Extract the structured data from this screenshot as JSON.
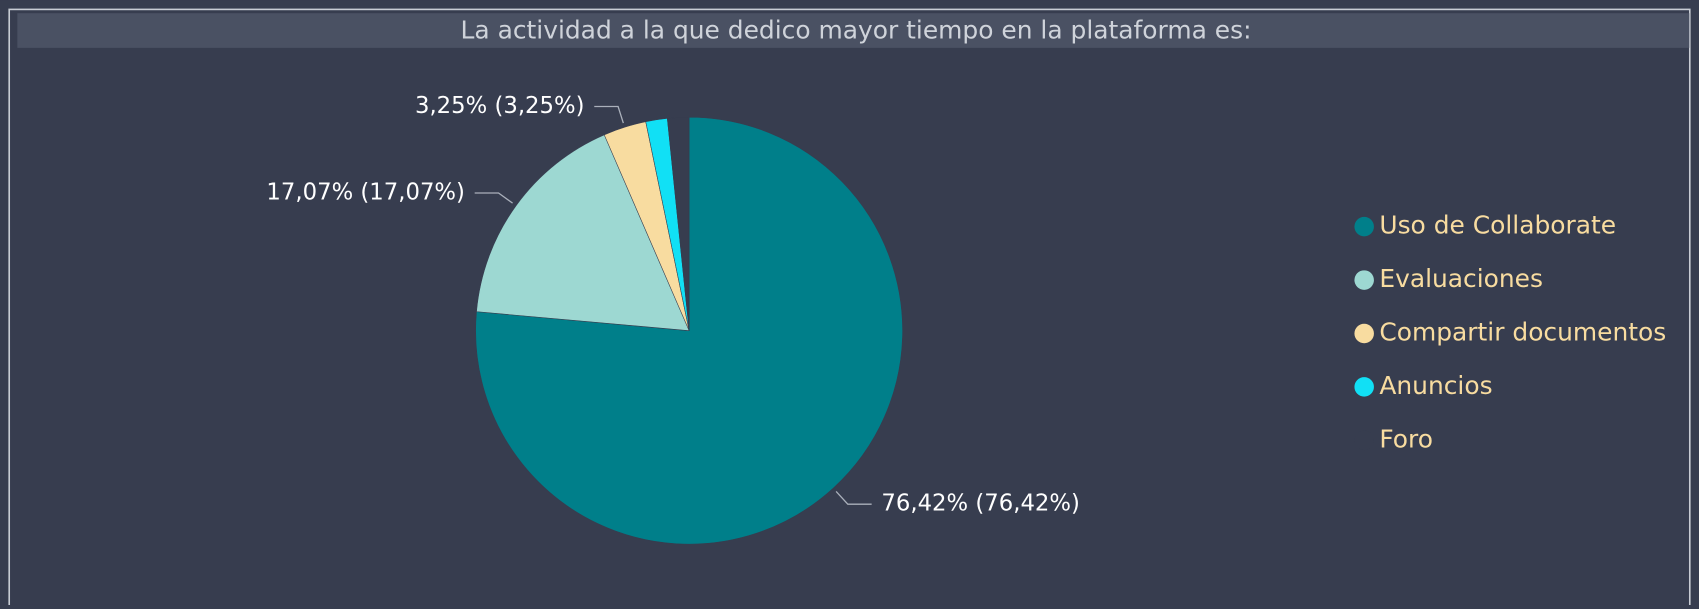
{
  "chart_data": {
    "type": "pie",
    "title": "La actividad a la que dedico mayor tiempo en la plataforma es:",
    "categories": [
      "Uso de Collaborate",
      "Evaluaciones",
      "Compartir documentos",
      "Anuncios",
      "Foro"
    ],
    "values": [
      76.42,
      17.07,
      3.25,
      1.63,
      1.63
    ],
    "value_labels": [
      "76,42% (76,42%)",
      "17,07% (17,07%)",
      "3,25% (3,25%)",
      null,
      null
    ],
    "colors": [
      "#007f8a",
      "#9dd8d2",
      "#f8dca0",
      "#11e0f5",
      "#373d4f"
    ]
  }
}
